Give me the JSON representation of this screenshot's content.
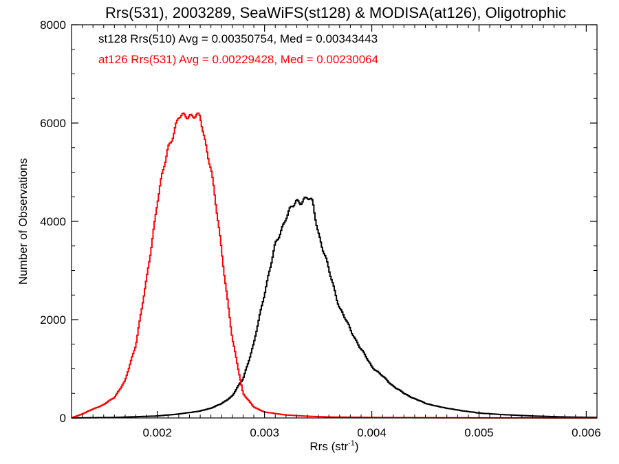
{
  "chart_data": {
    "type": "line",
    "step": true,
    "title": "Rrs(531), 2003289, SeaWiFS(st128) & MODISA(at126), Oligotrophic",
    "xlabel": "Rrs (str",
    "xlabel_sup": "-1",
    "xlabel_close": ")",
    "ylabel": "Number of Observations",
    "xlim": [
      0.0012,
      0.0061
    ],
    "ylim": [
      0,
      8000
    ],
    "xticks": [
      0.002,
      0.003,
      0.004,
      0.005,
      0.006
    ],
    "xtick_labels": [
      "0.002",
      "0.003",
      "0.004",
      "0.005",
      "0.006"
    ],
    "yticks": [
      0,
      2000,
      4000,
      6000,
      8000
    ],
    "ytick_labels": [
      "0",
      "2000",
      "4000",
      "6000",
      "8000"
    ],
    "grid": false,
    "legend_placement": "top-left",
    "series": [
      {
        "name": "st128 Rrs(510) Avg = 0.00350754, Med = 0.00343443",
        "color": "#000000",
        "x": [
          0.0012,
          0.0016,
          0.002,
          0.0022,
          0.0024,
          0.0025,
          0.0026,
          0.0027,
          0.0028,
          0.0029,
          0.003,
          0.0031,
          0.0032,
          0.0033,
          0.0034,
          0.00345,
          0.0035,
          0.0036,
          0.0037,
          0.0038,
          0.0039,
          0.004,
          0.0041,
          0.0042,
          0.0043,
          0.0044,
          0.0045,
          0.0046,
          0.0048,
          0.005,
          0.0052,
          0.0055,
          0.0058,
          0.0061
        ],
        "y": [
          0,
          10,
          40,
          80,
          140,
          200,
          290,
          450,
          800,
          1500,
          2550,
          3500,
          4100,
          4400,
          4480,
          4350,
          3800,
          3000,
          2250,
          1800,
          1400,
          1050,
          850,
          650,
          500,
          390,
          300,
          240,
          160,
          100,
          70,
          40,
          20,
          10
        ]
      },
      {
        "name": "at126 Rrs(531) Avg = 0.00229428, Med = 0.00230064",
        "color": "#ff0000",
        "x": [
          0.0012,
          0.0013,
          0.0014,
          0.0015,
          0.0016,
          0.0017,
          0.0018,
          0.0019,
          0.002,
          0.0021,
          0.0022,
          0.0023,
          0.0024,
          0.0025,
          0.0026,
          0.0027,
          0.0028,
          0.0029,
          0.003,
          0.0032,
          0.0034,
          0.0036,
          0.004,
          0.0045,
          0.005,
          0.0061
        ],
        "y": [
          0,
          80,
          180,
          270,
          420,
          750,
          1500,
          2800,
          4400,
          5500,
          6100,
          6180,
          6100,
          5100,
          3400,
          1600,
          500,
          220,
          120,
          60,
          35,
          20,
          10,
          5,
          2,
          0
        ]
      }
    ]
  }
}
